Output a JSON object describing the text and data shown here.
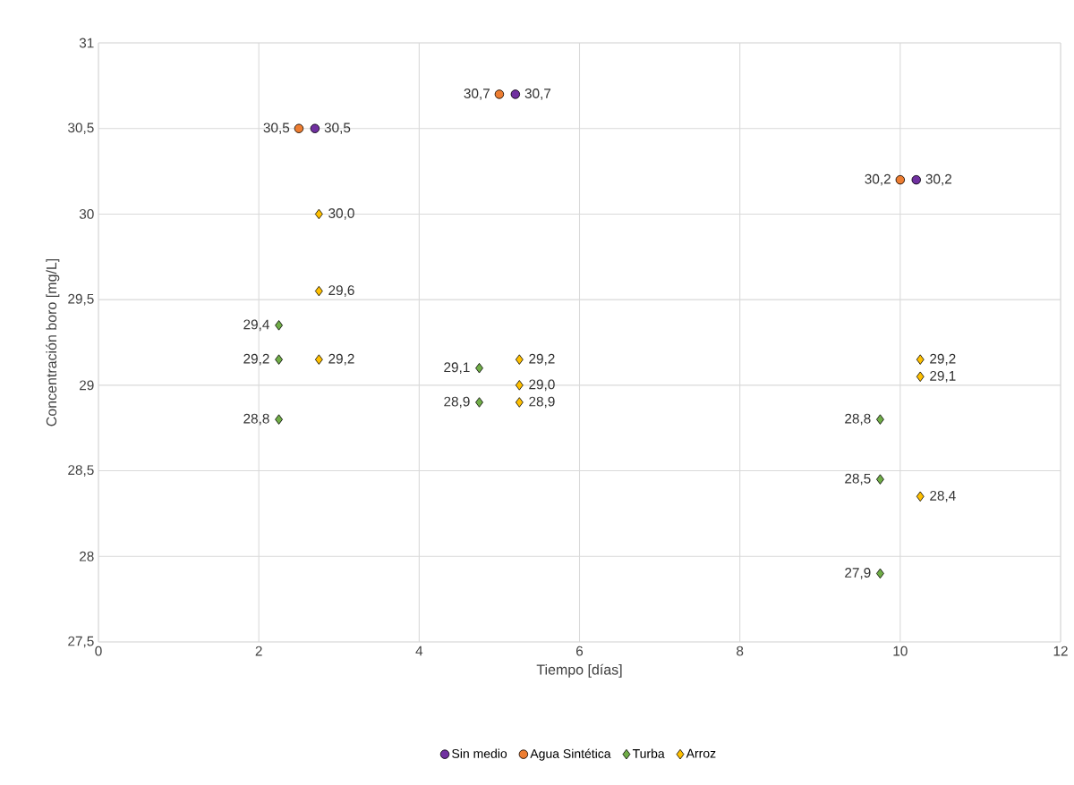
{
  "chart_data": {
    "type": "scatter",
    "xlabel": "Tiempo [días]",
    "ylabel": "Concentración boro [mg/L]",
    "xlim": [
      0,
      12
    ],
    "xticks": [
      0,
      2,
      4,
      6,
      8,
      10,
      12
    ],
    "ylim": [
      27.5,
      31
    ],
    "yticks": [
      {
        "value": 27.5,
        "label": "27,5"
      },
      28,
      {
        "value": 28.5,
        "label": "28,5"
      },
      29,
      {
        "value": 29.5,
        "label": "29,5"
      },
      30,
      {
        "value": 30.5,
        "label": "30,5"
      },
      31
    ],
    "grid": true,
    "legend": "bottom",
    "series": [
      {
        "name": "Sin medio",
        "color": "#7030a0",
        "marker": "circle",
        "x": [
          2.7,
          5.2,
          10.2
        ],
        "values": [
          30.5,
          30.7,
          30.2
        ],
        "value_labels": [
          "30,5",
          "30,7",
          "30,2"
        ]
      },
      {
        "name": "Agua Sintética",
        "color": "#ed7d31",
        "marker": "circle",
        "x": [
          2.5,
          5.0,
          10.0
        ],
        "values": [
          30.5,
          30.7,
          30.2
        ],
        "value_labels": [
          "30,5",
          "30,7",
          "30,2"
        ]
      },
      {
        "name": "Turba",
        "color": "#70ad47",
        "marker": "diamond",
        "x": [
          2.25,
          2.25,
          2.25,
          4.75,
          4.75,
          9.75,
          9.75,
          9.75
        ],
        "values": [
          29.35,
          29.15,
          28.8,
          29.1,
          28.9,
          28.8,
          28.45,
          27.9
        ],
        "value_labels": [
          "29,4",
          "29,2",
          "28,8",
          "29,1",
          "28,9",
          "28,8",
          "28,5",
          "27,9"
        ]
      },
      {
        "name": "Arroz",
        "color": "#ffc000",
        "marker": "diamond",
        "x": [
          2.75,
          2.75,
          2.75,
          5.25,
          5.25,
          5.25,
          10.25,
          10.25,
          10.25
        ],
        "values": [
          30.0,
          29.55,
          29.15,
          29.15,
          29.0,
          28.9,
          29.15,
          29.05,
          28.35
        ],
        "value_labels": [
          "30,0",
          "29,6",
          "29,2",
          "29,2",
          "29,0",
          "28,9",
          "29,2",
          "29,1",
          "28,4"
        ]
      }
    ]
  }
}
